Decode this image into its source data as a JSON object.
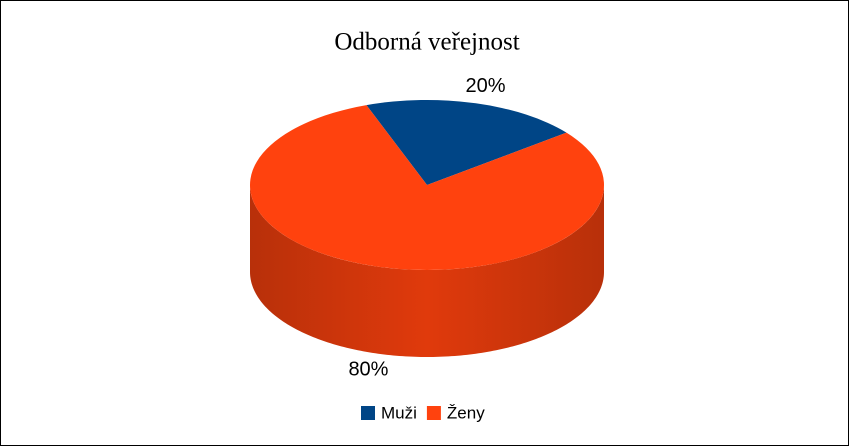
{
  "chart_data": {
    "type": "pie",
    "title": "Odborná veřejnost",
    "categories": [
      "Muži",
      "Ženy"
    ],
    "values": [
      20,
      80
    ],
    "value_labels": [
      "20%",
      "80%"
    ],
    "colors": [
      "#004586",
      "#ff420e"
    ],
    "legend": "bottom"
  }
}
